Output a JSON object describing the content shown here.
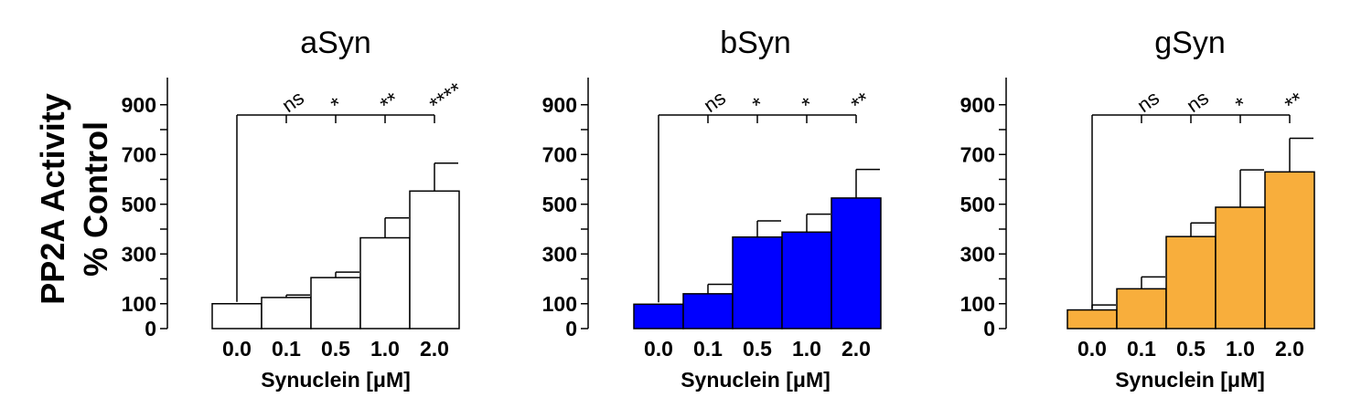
{
  "figure": {
    "ylabel_line1": "PP2A Activity",
    "ylabel_line2": "% Control"
  },
  "chart_data": [
    {
      "type": "bar",
      "title": "aSyn",
      "xlabel": "Synuclein [μM]",
      "categories": [
        "0.0",
        "0.1",
        "0.5",
        "1.0",
        "2.0"
      ],
      "values": [
        100,
        125,
        205,
        365,
        553
      ],
      "errors": [
        0,
        10,
        22,
        80,
        112
      ],
      "significance": [
        "ns",
        "*",
        "**",
        "****"
      ],
      "yticks": [
        "0",
        "100",
        "300",
        "500",
        "700",
        "900"
      ],
      "ylim": [
        0,
        1000
      ],
      "bar_color": "#ffffff"
    },
    {
      "type": "bar",
      "title": "bSyn",
      "xlabel": "Synuclein [μM]",
      "categories": [
        "0.0",
        "0.1",
        "0.5",
        "1.0",
        "2.0"
      ],
      "values": [
        98,
        140,
        368,
        388,
        525
      ],
      "errors": [
        0,
        38,
        65,
        72,
        115
      ],
      "significance": [
        "ns",
        "*",
        "*",
        "**"
      ],
      "yticks": [
        "0",
        "100",
        "300",
        "500",
        "700",
        "900"
      ],
      "ylim": [
        0,
        1000
      ],
      "bar_color": "#0000ff"
    },
    {
      "type": "bar",
      "title": "gSyn",
      "xlabel": "Synuclein [μM]",
      "categories": [
        "0.0",
        "0.1",
        "0.5",
        "1.0",
        "2.0"
      ],
      "values": [
        75,
        160,
        370,
        488,
        630
      ],
      "errors": [
        20,
        48,
        55,
        150,
        135
      ],
      "significance": [
        "ns",
        "ns",
        "*",
        "**"
      ],
      "yticks": [
        "0",
        "100",
        "300",
        "500",
        "700",
        "900"
      ],
      "ylim": [
        0,
        1000
      ],
      "bar_color": "#f8ae3c"
    }
  ]
}
